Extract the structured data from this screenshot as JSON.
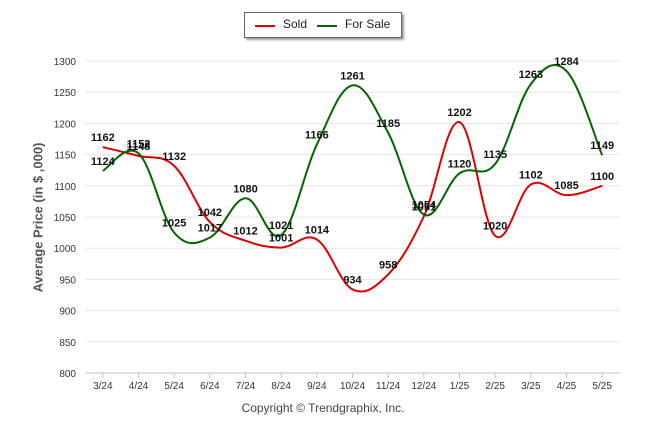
{
  "legend": [
    {
      "label": "Sold",
      "color": "#dd0000"
    },
    {
      "label": "For Sale",
      "color": "#006600"
    }
  ],
  "footer": "Copyright © Trendgraphix, Inc.",
  "chart_data": {
    "type": "line",
    "title": "",
    "xlabel": "",
    "ylabel": "Average Price (in $ ,000)",
    "ylim": [
      800,
      1300
    ],
    "yticks": [
      800,
      850,
      900,
      950,
      1000,
      1050,
      1100,
      1150,
      1200,
      1250,
      1300
    ],
    "categories": [
      "3/24",
      "4/24",
      "5/24",
      "6/24",
      "7/24",
      "8/24",
      "9/24",
      "10/24",
      "11/24",
      "12/24",
      "1/25",
      "2/25",
      "3/25",
      "4/25",
      "5/25"
    ],
    "series": [
      {
        "name": "Sold",
        "color": "#dd0000",
        "values": [
          1162,
          1148,
          1132,
          1042,
          1012,
          1001,
          1014,
          934,
          958,
          1051,
          1202,
          1020,
          1102,
          1085,
          1100
        ]
      },
      {
        "name": "For Sale",
        "color": "#006600",
        "values": [
          1124,
          1152,
          1025,
          1017,
          1080,
          1021,
          1166,
          1261,
          1185,
          1054,
          1120,
          1135,
          1263,
          1284,
          1149
        ]
      }
    ],
    "grid": true,
    "legend_position": "top-center"
  }
}
